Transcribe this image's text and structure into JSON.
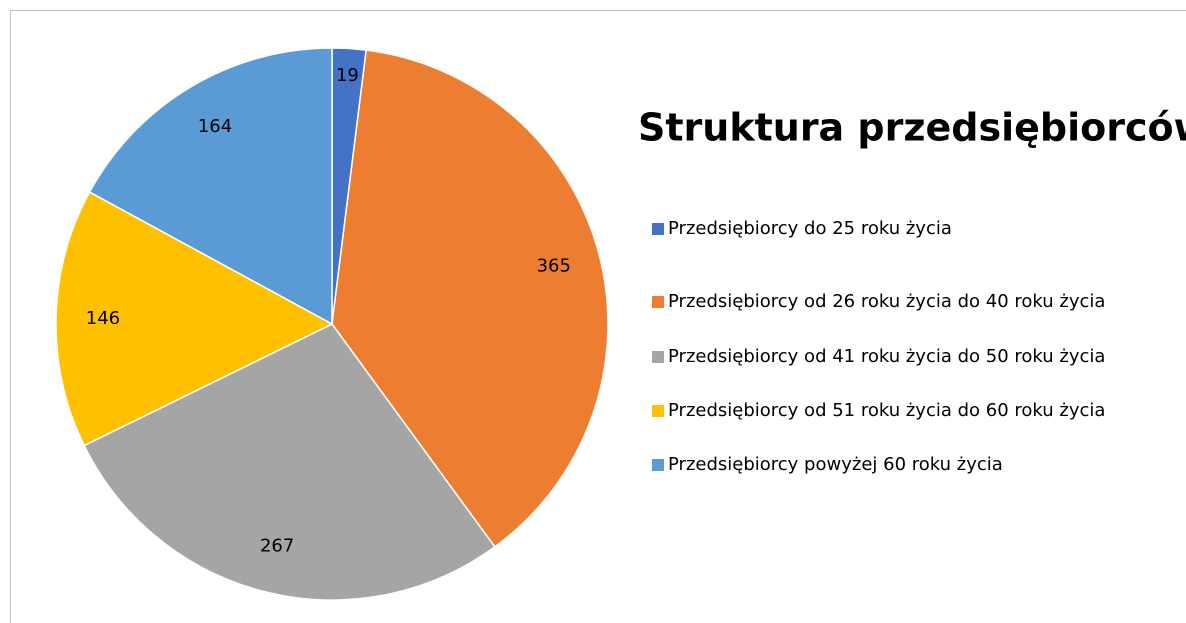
{
  "chart_data": {
    "type": "pie",
    "title": "Struktura przedsiębiorców",
    "categories": [
      "Przedsiębiorcy do 25 roku życia",
      "Przedsiębiorcy od 26 roku życia do 40 roku życia",
      "Przedsiębiorcy od 41 roku życia do 50 roku życia",
      "Przedsiębiorcy od 51 roku życia do 60 roku życia",
      "Przedsiębiorcy powyżej 60 roku życia"
    ],
    "values": [
      19,
      365,
      267,
      146,
      164
    ],
    "colors": [
      "#4472c4",
      "#ed7d31",
      "#a5a5a5",
      "#ffc000",
      "#5b9bd5"
    ],
    "legend": "right"
  }
}
